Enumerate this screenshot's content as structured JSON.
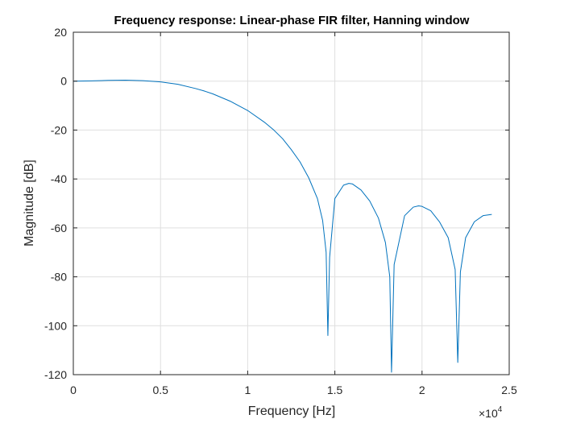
{
  "chart_data": {
    "type": "line",
    "title": "Frequency response: Linear-phase FIR filter, Hanning window",
    "xlabel": "Frequency [Hz]",
    "ylabel": "Magnitude [dB]",
    "x_exponent_base": "×10",
    "x_exponent_power": "4",
    "xlim": [
      0,
      25000
    ],
    "ylim": [
      -120,
      20
    ],
    "xticks": [
      0,
      5000,
      10000,
      15000,
      20000,
      25000
    ],
    "xtick_labels": [
      "0",
      "0.5",
      "1",
      "1.5",
      "2",
      "2.5"
    ],
    "yticks": [
      20,
      0,
      -20,
      -40,
      -60,
      -80,
      -100,
      -120
    ],
    "ytick_labels": [
      "20",
      "0",
      "-20",
      "-40",
      "-60",
      "-80",
      "-100",
      "-120"
    ],
    "grid": true,
    "line_color": "#0072bd",
    "series": [
      {
        "x": [
          0,
          1000,
          2000,
          3000,
          4000,
          5000,
          6000,
          7000,
          7500,
          8000,
          9000,
          10000,
          11000,
          11500,
          12000,
          12500,
          13000,
          13500,
          14000,
          14300,
          14500,
          14600,
          14700,
          15000,
          15500,
          15800,
          16000,
          16500,
          17000,
          17500,
          17900,
          18150,
          18250,
          18400,
          19000,
          19500,
          19800,
          20000,
          20500,
          21000,
          21500,
          21900,
          22050,
          22200,
          22500,
          23000,
          23500,
          24000
        ],
        "y": [
          0,
          0.1,
          0.3,
          0.4,
          0.2,
          -0.3,
          -1.3,
          -3.0,
          -4.0,
          -5.2,
          -8.2,
          -12.0,
          -17.0,
          -20.0,
          -23.5,
          -28.0,
          -33.0,
          -39.5,
          -48.0,
          -57.0,
          -70.0,
          -104.0,
          -72.0,
          -48.0,
          -42.5,
          -41.8,
          -42.0,
          -44.5,
          -49.0,
          -56.0,
          -66.0,
          -80.0,
          -119.0,
          -75.0,
          -55.0,
          -51.5,
          -51.0,
          -51.2,
          -53.0,
          -57.5,
          -64.0,
          -77.0,
          -115.0,
          -78.0,
          -64.0,
          -57.5,
          -55.0,
          -54.5
        ]
      }
    ]
  }
}
